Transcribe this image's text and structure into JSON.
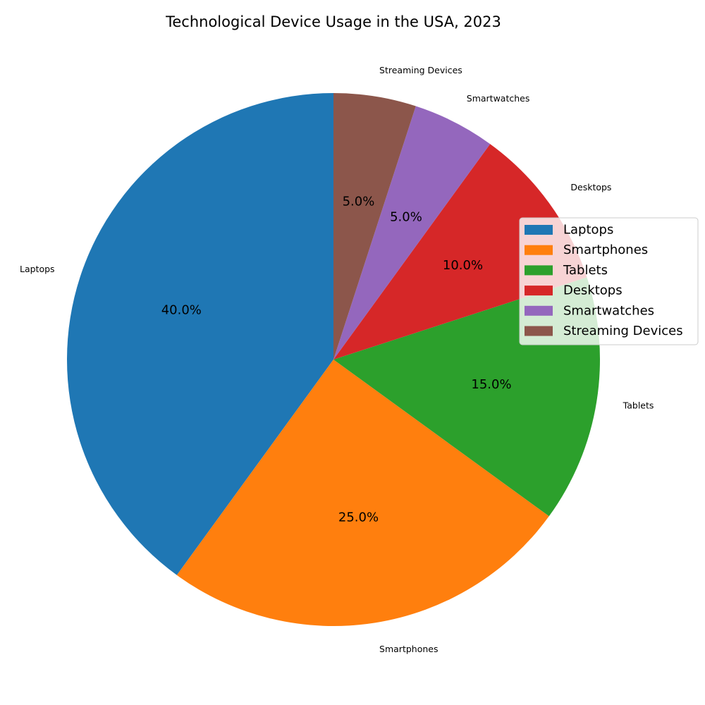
{
  "chart_data": {
    "type": "pie",
    "title": "Technological Device Usage in the USA, 2023",
    "slices": [
      {
        "label": "Laptops",
        "value": 40.0,
        "pct_label": "40.0%",
        "color": "#1f77b4"
      },
      {
        "label": "Smartphones",
        "value": 25.0,
        "pct_label": "25.0%",
        "color": "#ff7f0e"
      },
      {
        "label": "Tablets",
        "value": 15.0,
        "pct_label": "15.0%",
        "color": "#2ca02c"
      },
      {
        "label": "Desktops",
        "value": 10.0,
        "pct_label": "10.0%",
        "color": "#d62728"
      },
      {
        "label": "Smartwatches",
        "value": 5.0,
        "pct_label": "5.0%",
        "color": "#9467bd"
      },
      {
        "label": "Streaming Devices",
        "value": 5.0,
        "pct_label": "5.0%",
        "color": "#8c564b"
      }
    ],
    "start_angle_deg": 90,
    "direction": "counterclockwise",
    "legend_placement": "right",
    "legend_entries": [
      "Laptops",
      "Smartphones",
      "Tablets",
      "Desktops",
      "Smartwatches",
      "Streaming Devices"
    ]
  }
}
